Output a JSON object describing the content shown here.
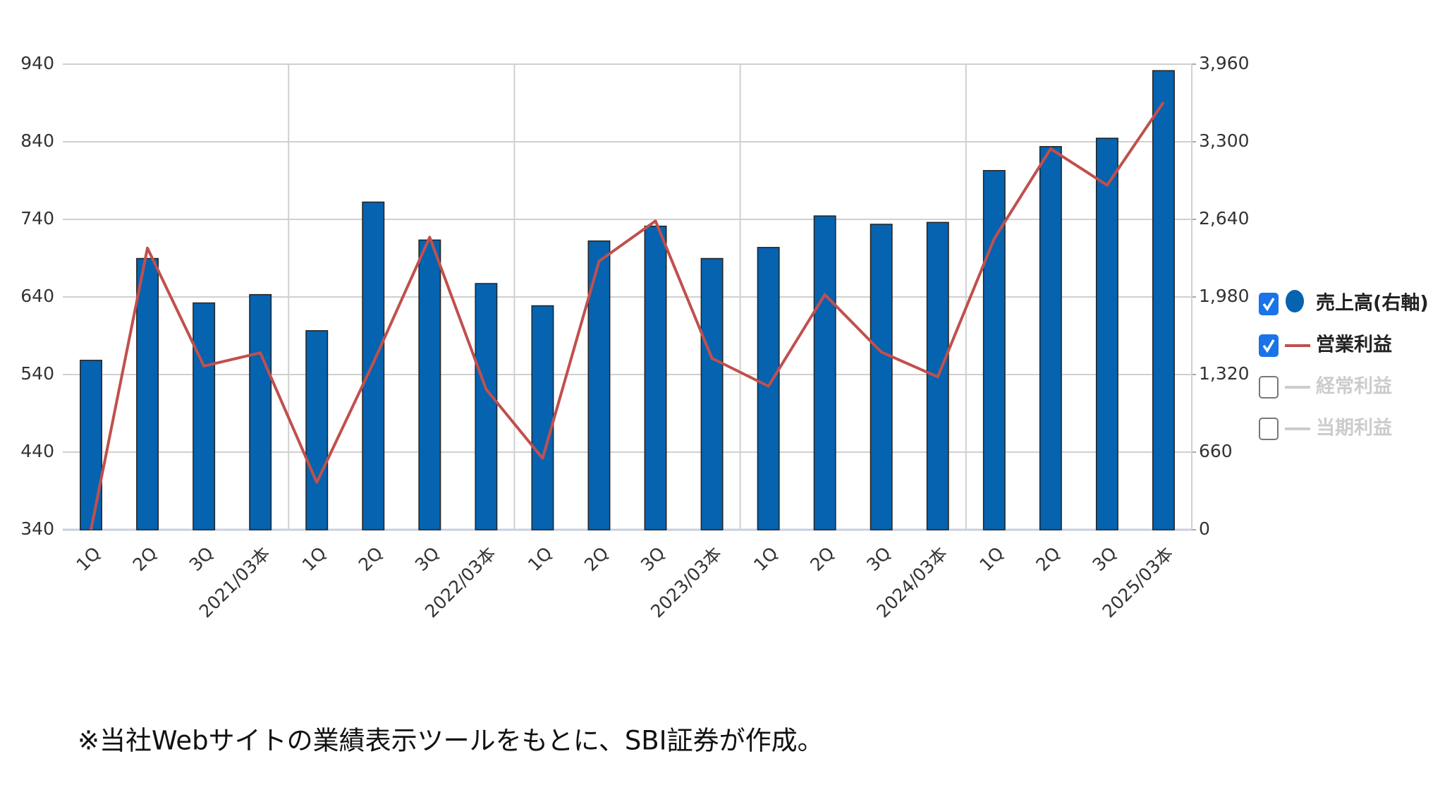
{
  "chart_data": {
    "type": "bar-line",
    "categories": [
      "1Q",
      "2Q",
      "3Q",
      "2021/03本",
      "1Q",
      "2Q",
      "3Q",
      "2022/03本",
      "1Q",
      "2Q",
      "3Q",
      "2023/03本",
      "1Q",
      "2Q",
      "3Q",
      "2024/03本",
      "1Q",
      "2Q",
      "3Q",
      "2025/03本"
    ],
    "series": [
      {
        "name": "売上高(右軸)",
        "type": "bar",
        "axis": "y2",
        "color": "#0563b0",
        "values": [
          1441,
          2307,
          1929,
          2000,
          1693,
          2787,
          2464,
          2094,
          1905,
          2456,
          2582,
          2307,
          2401,
          2669,
          2598,
          2614,
          3055,
          3259,
          3330,
          3905
        ]
      },
      {
        "name": "営業利益",
        "type": "line",
        "color": "#c0504d",
        "values": [
          340,
          703,
          551,
          568,
          401,
          555,
          717,
          521,
          432,
          686,
          738,
          561,
          525,
          643,
          569,
          537,
          715,
          831,
          784,
          891
        ]
      }
    ],
    "hidden_series": [
      {
        "name": "経常利益",
        "color": "#cccccc"
      },
      {
        "name": "当期利益",
        "color": "#cccccc"
      }
    ],
    "ylim": [
      340,
      940
    ],
    "yticks": [
      340,
      440,
      540,
      640,
      740,
      840,
      940
    ],
    "y2lim": [
      0,
      3960
    ],
    "y2ticks": [
      0,
      660,
      {
        "value": 1320,
        "label": "1,320"
      },
      {
        "value": 1980,
        "label": "1,980"
      },
      {
        "value": 2640,
        "label": "2,640"
      },
      {
        "value": 3300,
        "label": "3,300"
      },
      {
        "value": 3960,
        "label": "3,960"
      }
    ],
    "grid": true,
    "legend": "right",
    "footnote": "※当社Webサイトの業績表示ツールをもとに、SBI証券が作成。"
  }
}
